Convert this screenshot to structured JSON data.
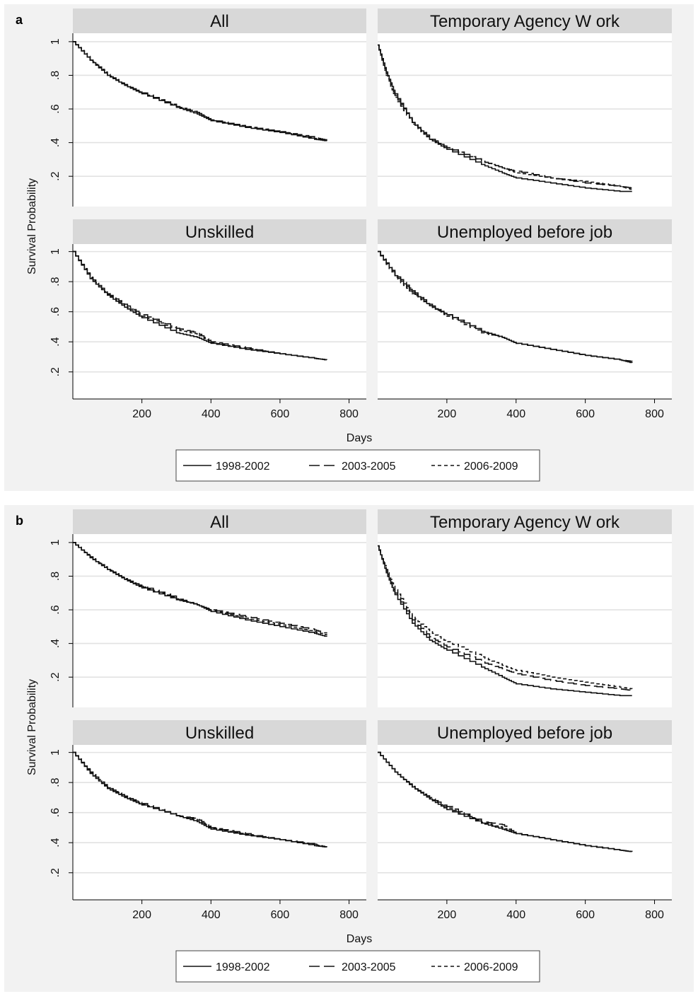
{
  "chart_data": [
    {
      "type": "line",
      "panel_label": "a",
      "ylabel": "Survival Probability",
      "xlabel": "Days",
      "x_ticks": [
        200,
        400,
        600,
        800
      ],
      "y_ticks": [
        ".2",
        ".4",
        ".6",
        ".8",
        "1"
      ],
      "xlim": [
        0,
        850
      ],
      "ylim": [
        0.02,
        1.05
      ],
      "grid": true,
      "legend_position": "bottom",
      "legend": [
        "1998-2002",
        "2003-2005",
        "2006-2009"
      ],
      "facets": [
        {
          "title": "All",
          "series": [
            {
              "name": "1998-2002",
              "x": [
                0,
                50,
                100,
                150,
                200,
                300,
                360,
                400,
                500,
                600,
                700,
                735
              ],
              "y": [
                1.0,
                0.89,
                0.8,
                0.74,
                0.69,
                0.61,
                0.57,
                0.53,
                0.49,
                0.46,
                0.42,
                0.41
              ]
            },
            {
              "name": "2003-2005",
              "x": [
                0,
                50,
                100,
                150,
                200,
                300,
                360,
                400,
                500,
                600,
                700,
                735
              ],
              "y": [
                1.0,
                0.89,
                0.8,
                0.745,
                0.695,
                0.615,
                0.58,
                0.535,
                0.495,
                0.465,
                0.43,
                0.415
              ]
            },
            {
              "name": "2006-2009",
              "x": [
                0,
                50,
                100,
                150,
                200,
                300,
                360,
                400,
                500,
                600,
                700,
                735
              ],
              "y": [
                1.0,
                0.895,
                0.805,
                0.745,
                0.695,
                0.615,
                0.58,
                0.535,
                0.495,
                0.465,
                0.425,
                0.41
              ]
            }
          ]
        },
        {
          "title": "Temporary Agency W ork",
          "series": [
            {
              "name": "1998-2002",
              "x": [
                0,
                25,
                50,
                100,
                150,
                200,
                300,
                360,
                400,
                500,
                600,
                700,
                735
              ],
              "y": [
                0.98,
                0.82,
                0.69,
                0.52,
                0.42,
                0.36,
                0.27,
                0.22,
                0.19,
                0.16,
                0.13,
                0.11,
                0.11
              ]
            },
            {
              "name": "2003-2005",
              "x": [
                0,
                25,
                50,
                100,
                150,
                200,
                300,
                360,
                400,
                500,
                600,
                700,
                735
              ],
              "y": [
                0.98,
                0.81,
                0.68,
                0.52,
                0.43,
                0.37,
                0.29,
                0.25,
                0.23,
                0.19,
                0.16,
                0.14,
                0.13
              ]
            },
            {
              "name": "2006-2009",
              "x": [
                0,
                25,
                50,
                100,
                150,
                200,
                300,
                360,
                400,
                500,
                600,
                700,
                735
              ],
              "y": [
                0.98,
                0.8,
                0.67,
                0.51,
                0.42,
                0.37,
                0.29,
                0.25,
                0.22,
                0.19,
                0.17,
                0.14,
                0.12
              ]
            }
          ]
        },
        {
          "title": "Unskilled",
          "series": [
            {
              "name": "1998-2002",
              "x": [
                0,
                50,
                100,
                150,
                200,
                300,
                360,
                400,
                500,
                600,
                700,
                735
              ],
              "y": [
                1.0,
                0.82,
                0.71,
                0.63,
                0.56,
                0.46,
                0.43,
                0.39,
                0.35,
                0.32,
                0.29,
                0.28
              ]
            },
            {
              "name": "2003-2005",
              "x": [
                0,
                50,
                100,
                150,
                200,
                300,
                360,
                400,
                500,
                600,
                700,
                735
              ],
              "y": [
                1.0,
                0.83,
                0.72,
                0.65,
                0.58,
                0.49,
                0.46,
                0.4,
                0.36,
                0.32,
                0.29,
                0.28
              ]
            },
            {
              "name": "2006-2009",
              "x": [
                0,
                50,
                100,
                150,
                200,
                300,
                360,
                400,
                500,
                600,
                700,
                735
              ],
              "y": [
                1.0,
                0.825,
                0.715,
                0.64,
                0.57,
                0.48,
                0.45,
                0.395,
                0.355,
                0.32,
                0.29,
                0.28
              ]
            }
          ]
        },
        {
          "title": "Unemployed before job",
          "series": [
            {
              "name": "1998-2002",
              "x": [
                0,
                50,
                100,
                150,
                200,
                300,
                360,
                400,
                500,
                600,
                700,
                735
              ],
              "y": [
                1.0,
                0.84,
                0.73,
                0.64,
                0.58,
                0.47,
                0.43,
                0.39,
                0.35,
                0.31,
                0.28,
                0.26
              ]
            },
            {
              "name": "2003-2005",
              "x": [
                0,
                50,
                100,
                150,
                200,
                300,
                360,
                400,
                500,
                600,
                700,
                735
              ],
              "y": [
                1.0,
                0.85,
                0.74,
                0.65,
                0.58,
                0.47,
                0.43,
                0.39,
                0.35,
                0.31,
                0.28,
                0.27
              ]
            },
            {
              "name": "2006-2009",
              "x": [
                0,
                50,
                100,
                150,
                200,
                300,
                360,
                400,
                500,
                600,
                700,
                735
              ],
              "y": [
                1.0,
                0.83,
                0.72,
                0.64,
                0.57,
                0.46,
                0.43,
                0.39,
                0.35,
                0.31,
                0.28,
                0.26
              ]
            }
          ]
        }
      ]
    },
    {
      "type": "line",
      "panel_label": "b",
      "ylabel": "Survival Probability",
      "xlabel": "Days",
      "x_ticks": [
        200,
        400,
        600,
        800
      ],
      "y_ticks": [
        ".2",
        ".4",
        ".6",
        ".8",
        "1"
      ],
      "xlim": [
        0,
        850
      ],
      "ylim": [
        0.02,
        1.05
      ],
      "grid": true,
      "legend_position": "bottom",
      "legend": [
        "1998-2002",
        "2003-2005",
        "2006-2009"
      ],
      "facets": [
        {
          "title": "All",
          "series": [
            {
              "name": "1998-2002",
              "x": [
                0,
                50,
                100,
                150,
                200,
                300,
                360,
                400,
                500,
                600,
                700,
                735
              ],
              "y": [
                1.0,
                0.91,
                0.84,
                0.78,
                0.73,
                0.66,
                0.63,
                0.59,
                0.54,
                0.5,
                0.46,
                0.44
              ]
            },
            {
              "name": "2003-2005",
              "x": [
                0,
                50,
                100,
                150,
                200,
                300,
                360,
                400,
                500,
                600,
                700,
                735
              ],
              "y": [
                1.0,
                0.91,
                0.84,
                0.785,
                0.74,
                0.67,
                0.63,
                0.6,
                0.56,
                0.52,
                0.48,
                0.46
              ]
            },
            {
              "name": "2006-2009",
              "x": [
                0,
                50,
                100,
                150,
                200,
                300,
                360,
                400,
                500,
                600,
                700,
                735
              ],
              "y": [
                1.0,
                0.915,
                0.845,
                0.785,
                0.735,
                0.665,
                0.63,
                0.595,
                0.55,
                0.51,
                0.47,
                0.45
              ]
            }
          ]
        },
        {
          "title": "Temporary Agency W ork",
          "series": [
            {
              "name": "1998-2002",
              "x": [
                0,
                25,
                50,
                100,
                150,
                200,
                300,
                360,
                400,
                500,
                600,
                700,
                735
              ],
              "y": [
                0.98,
                0.82,
                0.69,
                0.52,
                0.42,
                0.36,
                0.26,
                0.2,
                0.16,
                0.13,
                0.11,
                0.09,
                0.09
              ]
            },
            {
              "name": "2003-2005",
              "x": [
                0,
                25,
                50,
                100,
                150,
                200,
                300,
                360,
                400,
                500,
                600,
                700,
                735
              ],
              "y": [
                0.98,
                0.83,
                0.7,
                0.54,
                0.44,
                0.38,
                0.29,
                0.25,
                0.22,
                0.18,
                0.15,
                0.13,
                0.12
              ]
            },
            {
              "name": "2006-2009",
              "x": [
                0,
                25,
                50,
                100,
                150,
                200,
                300,
                360,
                400,
                500,
                600,
                700,
                735
              ],
              "y": [
                0.98,
                0.84,
                0.72,
                0.56,
                0.47,
                0.41,
                0.32,
                0.27,
                0.24,
                0.2,
                0.17,
                0.14,
                0.13
              ]
            }
          ]
        },
        {
          "title": "Unskilled",
          "series": [
            {
              "name": "1998-2002",
              "x": [
                0,
                50,
                100,
                150,
                200,
                300,
                360,
                400,
                500,
                600,
                700,
                735
              ],
              "y": [
                1.0,
                0.86,
                0.76,
                0.7,
                0.65,
                0.58,
                0.54,
                0.49,
                0.45,
                0.42,
                0.38,
                0.37
              ]
            },
            {
              "name": "2003-2005",
              "x": [
                0,
                50,
                100,
                150,
                200,
                300,
                360,
                400,
                500,
                600,
                700,
                735
              ],
              "y": [
                1.0,
                0.87,
                0.77,
                0.71,
                0.66,
                0.58,
                0.56,
                0.5,
                0.46,
                0.42,
                0.39,
                0.37
              ]
            },
            {
              "name": "2006-2009",
              "x": [
                0,
                50,
                100,
                150,
                200,
                300,
                360,
                400,
                500,
                600,
                700,
                735
              ],
              "y": [
                1.0,
                0.865,
                0.765,
                0.705,
                0.655,
                0.58,
                0.55,
                0.495,
                0.455,
                0.42,
                0.385,
                0.37
              ]
            }
          ]
        },
        {
          "title": "Unemployed before job",
          "series": [
            {
              "name": "1998-2002",
              "x": [
                0,
                50,
                100,
                150,
                200,
                300,
                360,
                400,
                500,
                600,
                700,
                735
              ],
              "y": [
                1.0,
                0.87,
                0.77,
                0.69,
                0.62,
                0.53,
                0.49,
                0.46,
                0.42,
                0.38,
                0.35,
                0.34
              ]
            },
            {
              "name": "2003-2005",
              "x": [
                0,
                50,
                100,
                150,
                200,
                300,
                360,
                400,
                500,
                600,
                700,
                735
              ],
              "y": [
                1.0,
                0.87,
                0.77,
                0.7,
                0.64,
                0.54,
                0.52,
                0.46,
                0.42,
                0.38,
                0.35,
                0.34
              ]
            },
            {
              "name": "2006-2009",
              "x": [
                0,
                50,
                100,
                150,
                200,
                300,
                360,
                400,
                500,
                600,
                700,
                735
              ],
              "y": [
                1.0,
                0.87,
                0.775,
                0.695,
                0.63,
                0.535,
                0.5,
                0.46,
                0.42,
                0.38,
                0.35,
                0.34
              ]
            }
          ]
        }
      ]
    }
  ]
}
